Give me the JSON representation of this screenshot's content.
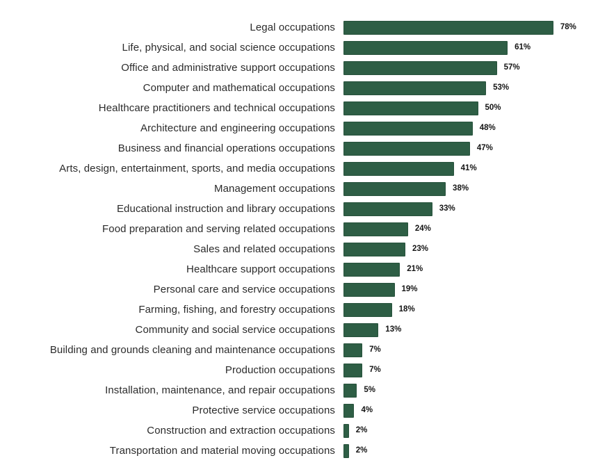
{
  "chart_data": {
    "type": "bar",
    "orientation": "horizontal",
    "title": "",
    "xlabel": "",
    "ylabel": "",
    "unit": "%",
    "grid": false,
    "legend": null,
    "axis_ticks_visible": false,
    "value_labels_position": "right-of-bar",
    "sort_order": "descending",
    "bar_color": "#2e5e45",
    "label_color": "#2b2b2b",
    "value_label_color": "#141414",
    "background_color": "#ffffff",
    "xlim": [
      0,
      88
    ],
    "categories": [
      "Legal occupations",
      "Life, physical, and social science occupations",
      "Office and administrative support occupations",
      "Computer and mathematical occupations",
      "Healthcare practitioners and technical occupations",
      "Architecture and engineering occupations",
      "Business and financial operations occupations",
      "Arts, design, entertainment, sports, and media occupations",
      "Management occupations",
      "Educational instruction and library occupations",
      "Food preparation and serving related occupations",
      "Sales and related occupations",
      "Healthcare support occupations",
      "Personal care and service occupations",
      "Farming, fishing, and forestry occupations",
      "Community and social service occupations",
      "Building and grounds cleaning and maintenance occupations",
      "Production occupations",
      "Installation, maintenance, and repair occupations",
      "Protective service occupations",
      "Construction and extraction occupations",
      "Transportation and material moving occupations"
    ],
    "values": [
      78,
      61,
      57,
      53,
      50,
      48,
      47,
      41,
      38,
      33,
      24,
      23,
      21,
      19,
      18,
      13,
      7,
      7,
      5,
      4,
      2,
      2
    ],
    "value_labels": [
      "78%",
      "61%",
      "57%",
      "53%",
      "50%",
      "48%",
      "47%",
      "41%",
      "38%",
      "33%",
      "24%",
      "23%",
      "21%",
      "19%",
      "18%",
      "13%",
      "7%",
      "7%",
      "5%",
      "4%",
      "2%",
      "2%"
    ]
  }
}
